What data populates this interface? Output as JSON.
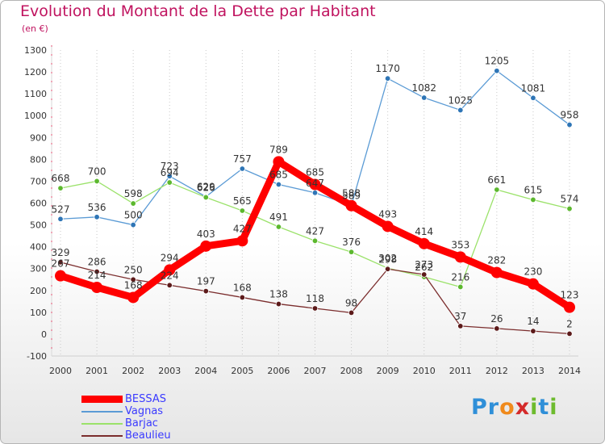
{
  "title": "Evolution du Montant de la Dette par Habitant",
  "subtitle": "(en €)",
  "logo": {
    "letters": [
      "P",
      "r",
      "o",
      "x",
      "i",
      "t",
      "i"
    ],
    "colors": [
      "#2f8fd8",
      "#2f8fd8",
      "#f08a1c",
      "#d42a2a",
      "#6dbb2e",
      "#2f8fd8",
      "#6dbb2e"
    ]
  },
  "chart_data": {
    "type": "line",
    "x": [
      "2000",
      "2001",
      "2002",
      "2003",
      "2004",
      "2005",
      "2006",
      "2007",
      "2008",
      "2009",
      "2010",
      "2011",
      "2012",
      "2013",
      "2014"
    ],
    "yticks": [
      -100,
      0,
      100,
      200,
      300,
      400,
      500,
      600,
      700,
      800,
      900,
      1000,
      1100,
      1200,
      1300
    ],
    "ylim": [
      -100,
      1300
    ],
    "grid": "dotted vertical",
    "legend": "bottom-left",
    "series": [
      {
        "name": "Vagnas",
        "color": "#5b9bd5",
        "marker": "#2e75b6",
        "values": [
          527,
          536,
          500,
          723,
          629,
          757,
          685,
          647,
          589,
          1170,
          1082,
          1025,
          1205,
          1081,
          958
        ],
        "labels": [
          "527",
          "536",
          "500",
          "723",
          "629",
          "757",
          "685",
          "647",
          "589",
          "1170",
          "1082",
          "1025",
          "1205",
          "1081",
          "958"
        ]
      },
      {
        "name": "Barjac",
        "color": "#9be26a",
        "marker": "#5cb82e",
        "values": [
          668,
          700,
          598,
          694,
          626,
          565,
          491,
          427,
          376,
          302,
          262,
          216,
          661,
          615,
          574
        ],
        "labels": [
          "668",
          "700",
          "598",
          "694",
          "626",
          "565",
          "491",
          "427",
          "376",
          "302",
          "262",
          "216",
          "661",
          "615",
          "574"
        ]
      },
      {
        "name": "Beaulieu",
        "color": "#7b2d2d",
        "marker": "#5c1a1a",
        "values": [
          329,
          286,
          250,
          224,
          197,
          168,
          138,
          118,
          98,
          298,
          273,
          37,
          26,
          14,
          2
        ],
        "labels": [
          "329",
          "286",
          "250",
          "224",
          "197",
          "168",
          "138",
          "118",
          "98",
          "298",
          "273",
          "37",
          "26",
          "14",
          "2"
        ]
      },
      {
        "name": "BESSAS",
        "color": "#ff0000",
        "marker": "#ff0000",
        "values": [
          267,
          214,
          168,
          294,
          403,
          427,
          789,
          685,
          588,
          493,
          414,
          353,
          282,
          230,
          123
        ],
        "labels": [
          "267",
          "214",
          "168",
          "294",
          "403",
          "427",
          "789",
          "685",
          "588",
          "493",
          "414",
          "353",
          "282",
          "230",
          "123"
        ]
      }
    ],
    "legend_order": [
      "BESSAS",
      "Vagnas",
      "Barjac",
      "Beaulieu"
    ]
  }
}
